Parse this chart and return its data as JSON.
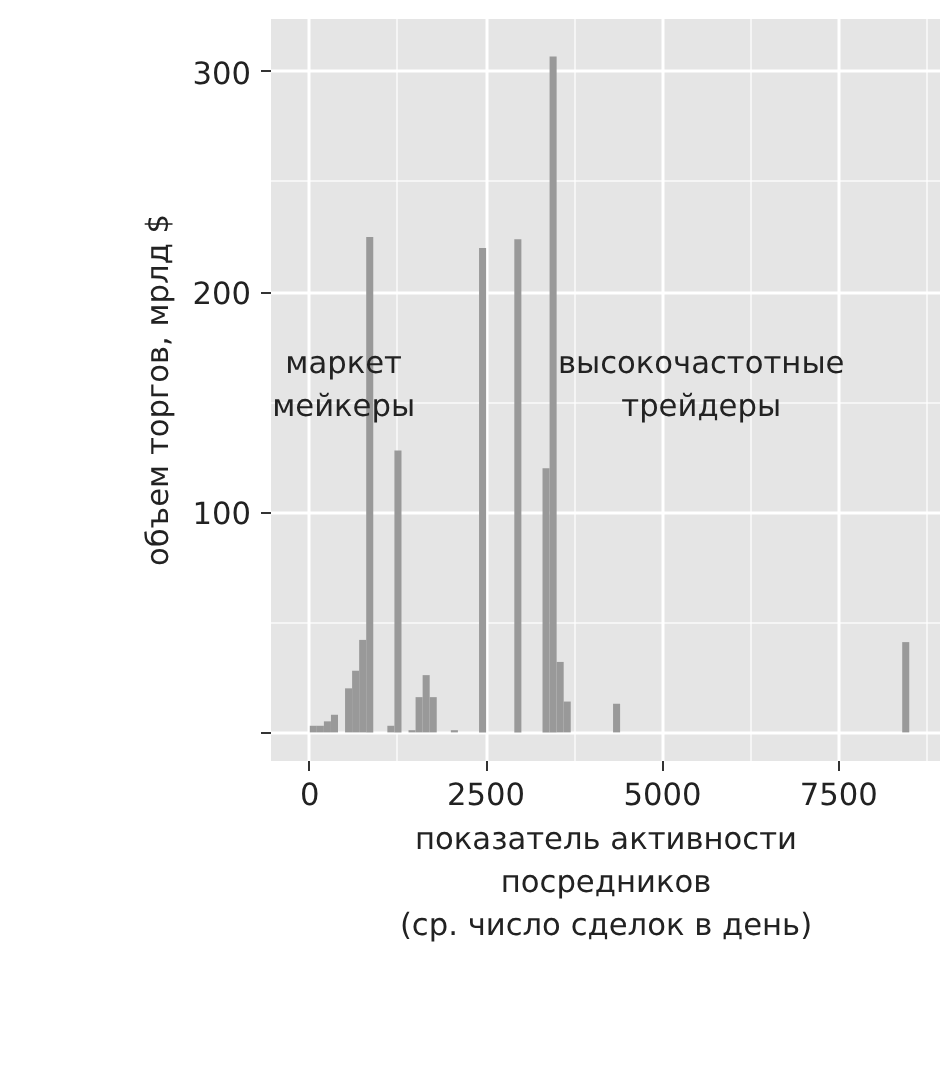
{
  "chart_data": {
    "type": "histogram",
    "xlabel": "показатель активности\nпосредников\n(ср. число сделок в день)",
    "ylabel": "объем торгов, мрлд $",
    "bins": [
      0,
      100,
      200,
      300,
      400,
      500,
      600,
      700,
      800,
      900,
      1000,
      1100,
      1200,
      1300,
      1400,
      1500,
      1600,
      1700,
      1800,
      1900,
      2000,
      2100,
      2200,
      2300,
      2400,
      2500,
      2600,
      2700,
      2800,
      2900,
      3000,
      3100,
      3200,
      3300,
      3400,
      3500,
      3600,
      3700,
      3800,
      3900,
      4000,
      4100,
      4200,
      4300,
      4400,
      4500,
      4600,
      4700,
      4800,
      4900,
      5000,
      5100,
      5200,
      5300,
      5400,
      5500,
      5600,
      5700,
      5800,
      5900,
      6000,
      6100,
      6200,
      6300,
      6400,
      6500,
      6600,
      6700,
      6800,
      6900,
      7000,
      7100,
      7200,
      7300,
      7400,
      7500,
      7600,
      7700,
      7800,
      7900,
      8000,
      8100,
      8200,
      8300,
      8400,
      8500
    ],
    "values": [
      3,
      3,
      5,
      8,
      0,
      20,
      28,
      42,
      225,
      0,
      0,
      3,
      128,
      0,
      1,
      16,
      26,
      16,
      0,
      0,
      1,
      0,
      0,
      0,
      220,
      0,
      0,
      0,
      0,
      224,
      0,
      0,
      0,
      120,
      307,
      32,
      14,
      0,
      0,
      0,
      0,
      0,
      0,
      13,
      0,
      0,
      0,
      0,
      0,
      0,
      0,
      0,
      0,
      0,
      0,
      0,
      0,
      0,
      0,
      0,
      0,
      0,
      0,
      0,
      0,
      0,
      0,
      0,
      0,
      0,
      0,
      0,
      0,
      0,
      0,
      0,
      0,
      0,
      0,
      0,
      0,
      0,
      0,
      0,
      41
    ],
    "color": "#999999",
    "xlim": [
      -550,
      8950
    ],
    "ylim": [
      -13,
      324
    ],
    "xticks": [
      0,
      2500,
      5000,
      7500
    ],
    "yticks": [
      {
        "value": 0,
        "label": null
      },
      100,
      200,
      300
    ],
    "grid": true,
    "annotations": [
      "маркет\nмейкеры",
      "высокочастотные\nтрейдеры"
    ]
  }
}
